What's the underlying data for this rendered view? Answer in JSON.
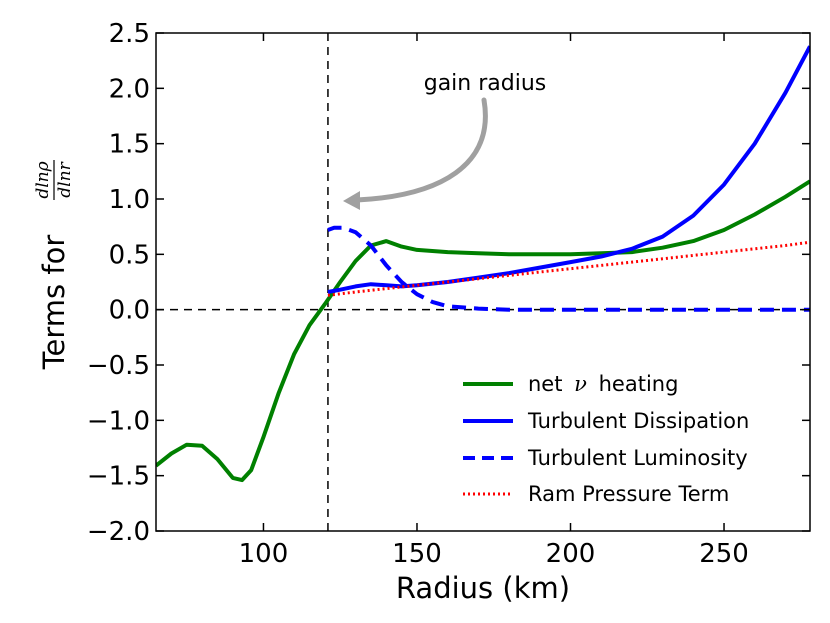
{
  "chart_data": {
    "type": "line",
    "xlabel": "Radius (km)",
    "ylabel_prefix": "Terms for",
    "ylabel_frac_num": "dlnρ",
    "ylabel_frac_den": "dlnr",
    "xlim": [
      65,
      278
    ],
    "ylim": [
      -2.0,
      2.5
    ],
    "xticks": [
      100,
      150,
      200,
      250
    ],
    "yticks": [
      -2.0,
      -1.5,
      -1.0,
      -0.5,
      0.0,
      0.5,
      1.0,
      1.5,
      2.0,
      2.5
    ],
    "ytick_labels": [
      "−2.0",
      "−1.5",
      "−1.0",
      "−0.5",
      "0.0",
      "0.5",
      "1.0",
      "1.5",
      "2.0",
      "2.5"
    ],
    "grid": false,
    "reference_lines": {
      "horizontal_y": 0.0,
      "vertical_x": 121
    },
    "annotation": {
      "text": "gain radius",
      "arrow_target": [
        126,
        1.0
      ]
    },
    "legend_position": "lower-right",
    "series": [
      {
        "name": "net ν heating",
        "legend_prefix": "net",
        "legend_symbol": "ν",
        "legend_suffix": "heating",
        "color": "#008000",
        "style": "solid",
        "x": [
          65,
          70,
          75,
          80,
          85,
          90,
          93,
          96,
          100,
          105,
          110,
          115,
          120,
          125,
          130,
          135,
          140,
          145,
          150,
          160,
          170,
          180,
          190,
          200,
          210,
          220,
          230,
          240,
          250,
          260,
          270,
          278
        ],
        "y": [
          -1.41,
          -1.3,
          -1.22,
          -1.23,
          -1.35,
          -1.52,
          -1.54,
          -1.45,
          -1.15,
          -0.75,
          -0.4,
          -0.14,
          0.05,
          0.25,
          0.44,
          0.58,
          0.62,
          0.57,
          0.54,
          0.52,
          0.51,
          0.5,
          0.5,
          0.5,
          0.51,
          0.52,
          0.56,
          0.62,
          0.72,
          0.86,
          1.02,
          1.16
        ]
      },
      {
        "name": "Turbulent Dissipation",
        "color": "#0000ff",
        "style": "solid",
        "x": [
          121,
          125,
          130,
          135,
          140,
          145,
          150,
          160,
          170,
          180,
          190,
          200,
          210,
          220,
          230,
          240,
          250,
          260,
          270,
          278
        ],
        "y": [
          0.16,
          0.18,
          0.21,
          0.23,
          0.22,
          0.21,
          0.22,
          0.25,
          0.29,
          0.33,
          0.38,
          0.43,
          0.48,
          0.55,
          0.66,
          0.85,
          1.13,
          1.5,
          1.96,
          2.38
        ]
      },
      {
        "name": "Turbulent Luminosity",
        "color": "#0000ff",
        "style": "dashed",
        "x": [
          121,
          123,
          126,
          130,
          135,
          140,
          145,
          150,
          155,
          160,
          170,
          180,
          200,
          220,
          240,
          260,
          278
        ],
        "y": [
          0.72,
          0.74,
          0.74,
          0.7,
          0.58,
          0.4,
          0.25,
          0.14,
          0.07,
          0.03,
          0.01,
          0.0,
          0.0,
          0.0,
          0.0,
          0.0,
          0.0
        ]
      },
      {
        "name": "Ram Pressure Term",
        "color": "#ff0000",
        "style": "dotted",
        "x": [
          121,
          130,
          140,
          150,
          160,
          170,
          180,
          190,
          200,
          210,
          220,
          230,
          240,
          250,
          260,
          270,
          278
        ],
        "y": [
          0.13,
          0.16,
          0.19,
          0.22,
          0.25,
          0.28,
          0.31,
          0.34,
          0.37,
          0.4,
          0.43,
          0.46,
          0.49,
          0.52,
          0.55,
          0.58,
          0.61
        ]
      }
    ]
  }
}
